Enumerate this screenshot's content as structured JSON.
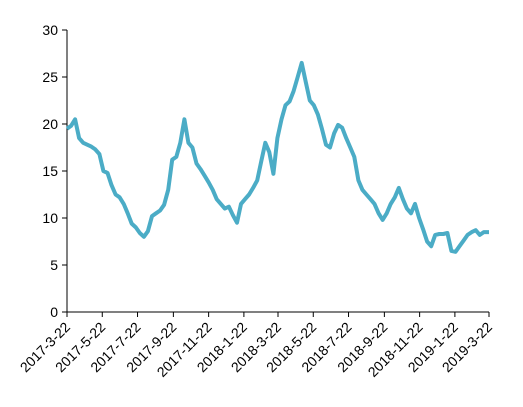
{
  "chart_data": {
    "type": "line",
    "title": "",
    "xlabel": "",
    "ylabel": "",
    "ylim": [
      0,
      30
    ],
    "y_ticks": [
      0,
      5,
      10,
      15,
      20,
      25,
      30
    ],
    "y_tick_labels": [
      "0",
      "5",
      "10",
      "15",
      "20",
      "25",
      "30"
    ],
    "x_tick_labels": [
      "2017-3-22",
      "2017-5-22",
      "2017-7-22",
      "2017-9-22",
      "2017-11-22",
      "2018-1-22",
      "2018-3-22",
      "2018-5-22",
      "2018-7-22",
      "2018-9-22",
      "2018-11-22",
      "2019-1-22",
      "2019-3-22"
    ],
    "x_ticks": [
      "2017-03-22",
      "2017-05-22",
      "2017-07-22",
      "2017-09-22",
      "2017-11-22",
      "2018-01-22",
      "2018-03-22",
      "2018-05-22",
      "2018-07-22",
      "2018-09-22",
      "2018-11-22",
      "2019-01-22",
      "2019-03-22"
    ],
    "grid": false,
    "line_color": "#4BACC6",
    "series": [
      {
        "x": [
          "2017-03-22",
          "2017-03-29",
          "2017-04-05",
          "2017-04-12",
          "2017-04-19",
          "2017-04-26",
          "2017-05-03",
          "2017-05-10",
          "2017-05-17",
          "2017-05-24",
          "2017-05-31",
          "2017-06-07",
          "2017-06-14",
          "2017-06-21",
          "2017-06-28",
          "2017-07-05",
          "2017-07-12",
          "2017-07-19",
          "2017-07-26",
          "2017-08-02",
          "2017-08-09",
          "2017-08-16",
          "2017-08-23",
          "2017-08-30",
          "2017-09-06",
          "2017-09-13",
          "2017-09-20",
          "2017-09-27",
          "2017-10-04",
          "2017-10-11",
          "2017-10-18",
          "2017-10-25",
          "2017-11-01",
          "2017-11-08",
          "2017-11-15",
          "2017-11-22",
          "2017-11-29",
          "2017-12-06",
          "2017-12-13",
          "2017-12-20",
          "2017-12-27",
          "2018-01-03",
          "2018-01-10",
          "2018-01-17",
          "2018-01-24",
          "2018-01-31",
          "2018-02-07",
          "2018-02-14",
          "2018-02-21",
          "2018-02-28",
          "2018-03-07",
          "2018-03-14",
          "2018-03-21",
          "2018-03-28",
          "2018-04-04",
          "2018-04-11",
          "2018-04-18",
          "2018-04-25",
          "2018-05-02",
          "2018-05-09",
          "2018-05-16",
          "2018-05-23",
          "2018-05-30",
          "2018-06-06",
          "2018-06-13",
          "2018-06-20",
          "2018-06-27",
          "2018-07-04",
          "2018-07-11",
          "2018-07-18",
          "2018-07-25",
          "2018-08-01",
          "2018-08-08",
          "2018-08-15",
          "2018-08-22",
          "2018-08-29",
          "2018-09-05",
          "2018-09-12",
          "2018-09-19",
          "2018-09-26",
          "2018-10-03",
          "2018-10-10",
          "2018-10-17",
          "2018-10-24",
          "2018-10-31",
          "2018-11-07",
          "2018-11-14",
          "2018-11-21",
          "2018-11-28",
          "2018-12-05",
          "2018-12-12",
          "2018-12-19",
          "2018-12-26",
          "2019-01-02",
          "2019-01-09",
          "2019-01-16",
          "2019-01-23",
          "2019-01-30",
          "2019-02-06",
          "2019-02-13",
          "2019-02-20",
          "2019-02-27",
          "2019-03-06",
          "2019-03-13",
          "2019-03-22"
        ],
        "values": [
          19.5,
          19.8,
          20.5,
          18.5,
          18.0,
          17.8,
          17.6,
          17.3,
          16.8,
          15.0,
          14.8,
          13.5,
          12.5,
          12.2,
          11.5,
          10.5,
          9.4,
          9.0,
          8.4,
          8.0,
          8.6,
          10.2,
          10.5,
          10.8,
          11.4,
          13.0,
          16.2,
          16.5,
          18.0,
          20.5,
          18.0,
          17.5,
          15.8,
          15.2,
          14.5,
          13.8,
          13.0,
          12.0,
          11.5,
          11.0,
          11.2,
          10.3,
          9.5,
          11.5,
          12.0,
          12.5,
          13.2,
          14.0,
          16.0,
          18.0,
          17.0,
          14.7,
          18.5,
          20.5,
          22.0,
          22.4,
          23.5,
          25.0,
          26.5,
          24.5,
          22.5,
          22.0,
          21.0,
          19.5,
          17.8,
          17.5,
          19.0,
          19.9,
          19.6,
          18.5,
          17.5,
          16.5,
          14.0,
          13.0,
          12.5,
          12.0,
          11.5,
          10.5,
          9.8,
          10.5,
          11.5,
          12.2,
          13.2,
          12.0,
          11.0,
          10.5,
          11.5,
          10.0,
          8.8,
          7.5,
          7.0,
          8.2,
          8.3,
          8.3,
          8.4,
          6.5,
          6.4,
          7.0,
          7.6,
          8.2,
          8.5,
          8.7,
          8.2,
          8.5,
          8.5
        ]
      }
    ]
  }
}
